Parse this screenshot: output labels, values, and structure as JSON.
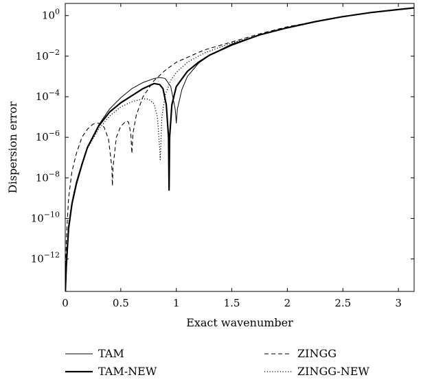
{
  "chart_data": {
    "type": "line",
    "xlabel": "Exact wavenumber",
    "ylabel": "Dispersion error",
    "xlim": [
      0,
      3.14159
    ],
    "ylim_log10": [
      -13.6,
      0.6
    ],
    "yscale": "log",
    "grid": false,
    "legend_position": "bottom",
    "x_ticks": [
      {
        "value": 0,
        "label": "0"
      },
      {
        "value": 0.5,
        "label": "0.5"
      },
      {
        "value": 1,
        "label": "1"
      },
      {
        "value": 1.5,
        "label": "1.5"
      },
      {
        "value": 2,
        "label": "2"
      },
      {
        "value": 2.5,
        "label": "2.5"
      },
      {
        "value": 3,
        "label": "3"
      }
    ],
    "y_ticks": [
      {
        "exponent": 0,
        "base": "10",
        "exp_label": "0"
      },
      {
        "exponent": -2,
        "base": "10",
        "exp_label": "−2"
      },
      {
        "exponent": -4,
        "base": "10",
        "exp_label": "−4"
      },
      {
        "exponent": -6,
        "base": "10",
        "exp_label": "−6"
      },
      {
        "exponent": -8,
        "base": "10",
        "exp_label": "−8"
      },
      {
        "exponent": -10,
        "base": "10",
        "exp_label": "−10"
      },
      {
        "exponent": -12,
        "base": "10",
        "exp_label": "−12"
      }
    ],
    "series": [
      {
        "name": "TAM",
        "style": "thin-solid",
        "points": [
          [
            0.001,
            -13.5
          ],
          [
            0.01,
            -12.2
          ],
          [
            0.03,
            -10.4
          ],
          [
            0.06,
            -9.2
          ],
          [
            0.1,
            -8.2
          ],
          [
            0.15,
            -7.3
          ],
          [
            0.2,
            -6.5
          ],
          [
            0.3,
            -5.4
          ],
          [
            0.4,
            -4.6
          ],
          [
            0.5,
            -4.05
          ],
          [
            0.6,
            -3.6
          ],
          [
            0.7,
            -3.3
          ],
          [
            0.8,
            -3.1
          ],
          [
            0.85,
            -3.05
          ],
          [
            0.9,
            -3.1
          ],
          [
            0.95,
            -3.5
          ],
          [
            0.99,
            -4.6
          ],
          [
            1.0,
            -5.3
          ],
          [
            1.01,
            -4.6
          ],
          [
            1.05,
            -3.65
          ],
          [
            1.1,
            -3.0
          ],
          [
            1.2,
            -2.35
          ],
          [
            1.3,
            -1.95
          ],
          [
            1.5,
            -1.4
          ],
          [
            1.75,
            -0.95
          ],
          [
            2.0,
            -0.6
          ],
          [
            2.25,
            -0.3
          ],
          [
            2.5,
            -0.05
          ],
          [
            2.75,
            0.15
          ],
          [
            3.0,
            0.3
          ],
          [
            3.14159,
            0.38
          ]
        ]
      },
      {
        "name": "TAM-NEW",
        "style": "thick-solid",
        "points": [
          [
            0.001,
            -13.6
          ],
          [
            0.01,
            -12.3
          ],
          [
            0.03,
            -10.5
          ],
          [
            0.06,
            -9.3
          ],
          [
            0.1,
            -8.3
          ],
          [
            0.15,
            -7.35
          ],
          [
            0.2,
            -6.5
          ],
          [
            0.3,
            -5.45
          ],
          [
            0.4,
            -4.75
          ],
          [
            0.5,
            -4.3
          ],
          [
            0.6,
            -3.95
          ],
          [
            0.7,
            -3.6
          ],
          [
            0.8,
            -3.35
          ],
          [
            0.85,
            -3.4
          ],
          [
            0.88,
            -3.6
          ],
          [
            0.91,
            -4.4
          ],
          [
            0.93,
            -6.0
          ],
          [
            0.935,
            -8.6
          ],
          [
            0.94,
            -6.0
          ],
          [
            0.96,
            -4.4
          ],
          [
            1.0,
            -3.5
          ],
          [
            1.1,
            -2.75
          ],
          [
            1.2,
            -2.3
          ],
          [
            1.3,
            -1.95
          ],
          [
            1.5,
            -1.45
          ],
          [
            1.75,
            -0.95
          ],
          [
            2.0,
            -0.6
          ],
          [
            2.25,
            -0.3
          ],
          [
            2.5,
            -0.05
          ],
          [
            2.75,
            0.15
          ],
          [
            3.0,
            0.3
          ],
          [
            3.14159,
            0.38
          ]
        ]
      },
      {
        "name": "ZINGG",
        "style": "dashed",
        "points": [
          [
            0.001,
            -13.3
          ],
          [
            0.01,
            -11.0
          ],
          [
            0.03,
            -9.0
          ],
          [
            0.06,
            -7.7
          ],
          [
            0.1,
            -6.8
          ],
          [
            0.15,
            -6.0
          ],
          [
            0.2,
            -5.6
          ],
          [
            0.25,
            -5.35
          ],
          [
            0.3,
            -5.3
          ],
          [
            0.35,
            -5.5
          ],
          [
            0.39,
            -6.1
          ],
          [
            0.42,
            -7.5
          ],
          [
            0.425,
            -8.4
          ],
          [
            0.43,
            -7.5
          ],
          [
            0.46,
            -6.0
          ],
          [
            0.5,
            -5.45
          ],
          [
            0.55,
            -5.2
          ],
          [
            0.57,
            -5.25
          ],
          [
            0.59,
            -5.8
          ],
          [
            0.6,
            -6.8
          ],
          [
            0.61,
            -5.8
          ],
          [
            0.64,
            -4.9
          ],
          [
            0.7,
            -4.0
          ],
          [
            0.8,
            -3.2
          ],
          [
            0.9,
            -2.7
          ],
          [
            1.0,
            -2.3
          ],
          [
            1.25,
            -1.7
          ],
          [
            1.5,
            -1.3
          ],
          [
            1.75,
            -0.9
          ],
          [
            2.0,
            -0.55
          ],
          [
            2.25,
            -0.3
          ],
          [
            2.5,
            -0.05
          ],
          [
            2.75,
            0.15
          ],
          [
            3.0,
            0.3
          ],
          [
            3.14159,
            0.38
          ]
        ]
      },
      {
        "name": "ZINGG-NEW",
        "style": "dotted",
        "points": [
          [
            0.001,
            -13.2
          ],
          [
            0.01,
            -12.0
          ],
          [
            0.03,
            -10.3
          ],
          [
            0.06,
            -9.2
          ],
          [
            0.1,
            -8.2
          ],
          [
            0.15,
            -7.3
          ],
          [
            0.2,
            -6.55
          ],
          [
            0.3,
            -5.6
          ],
          [
            0.4,
            -4.95
          ],
          [
            0.5,
            -4.5
          ],
          [
            0.6,
            -4.25
          ],
          [
            0.7,
            -4.1
          ],
          [
            0.75,
            -4.12
          ],
          [
            0.8,
            -4.35
          ],
          [
            0.83,
            -5.0
          ],
          [
            0.85,
            -6.5
          ],
          [
            0.855,
            -7.1
          ],
          [
            0.86,
            -6.5
          ],
          [
            0.87,
            -5.0
          ],
          [
            0.9,
            -3.9
          ],
          [
            0.95,
            -3.2
          ],
          [
            1.0,
            -2.8
          ],
          [
            1.1,
            -2.3
          ],
          [
            1.25,
            -1.85
          ],
          [
            1.5,
            -1.35
          ],
          [
            1.75,
            -0.95
          ],
          [
            2.0,
            -0.6
          ],
          [
            2.25,
            -0.3
          ],
          [
            2.5,
            -0.05
          ],
          [
            2.75,
            0.15
          ],
          [
            3.0,
            0.3
          ],
          [
            3.14159,
            0.38
          ]
        ]
      }
    ]
  }
}
